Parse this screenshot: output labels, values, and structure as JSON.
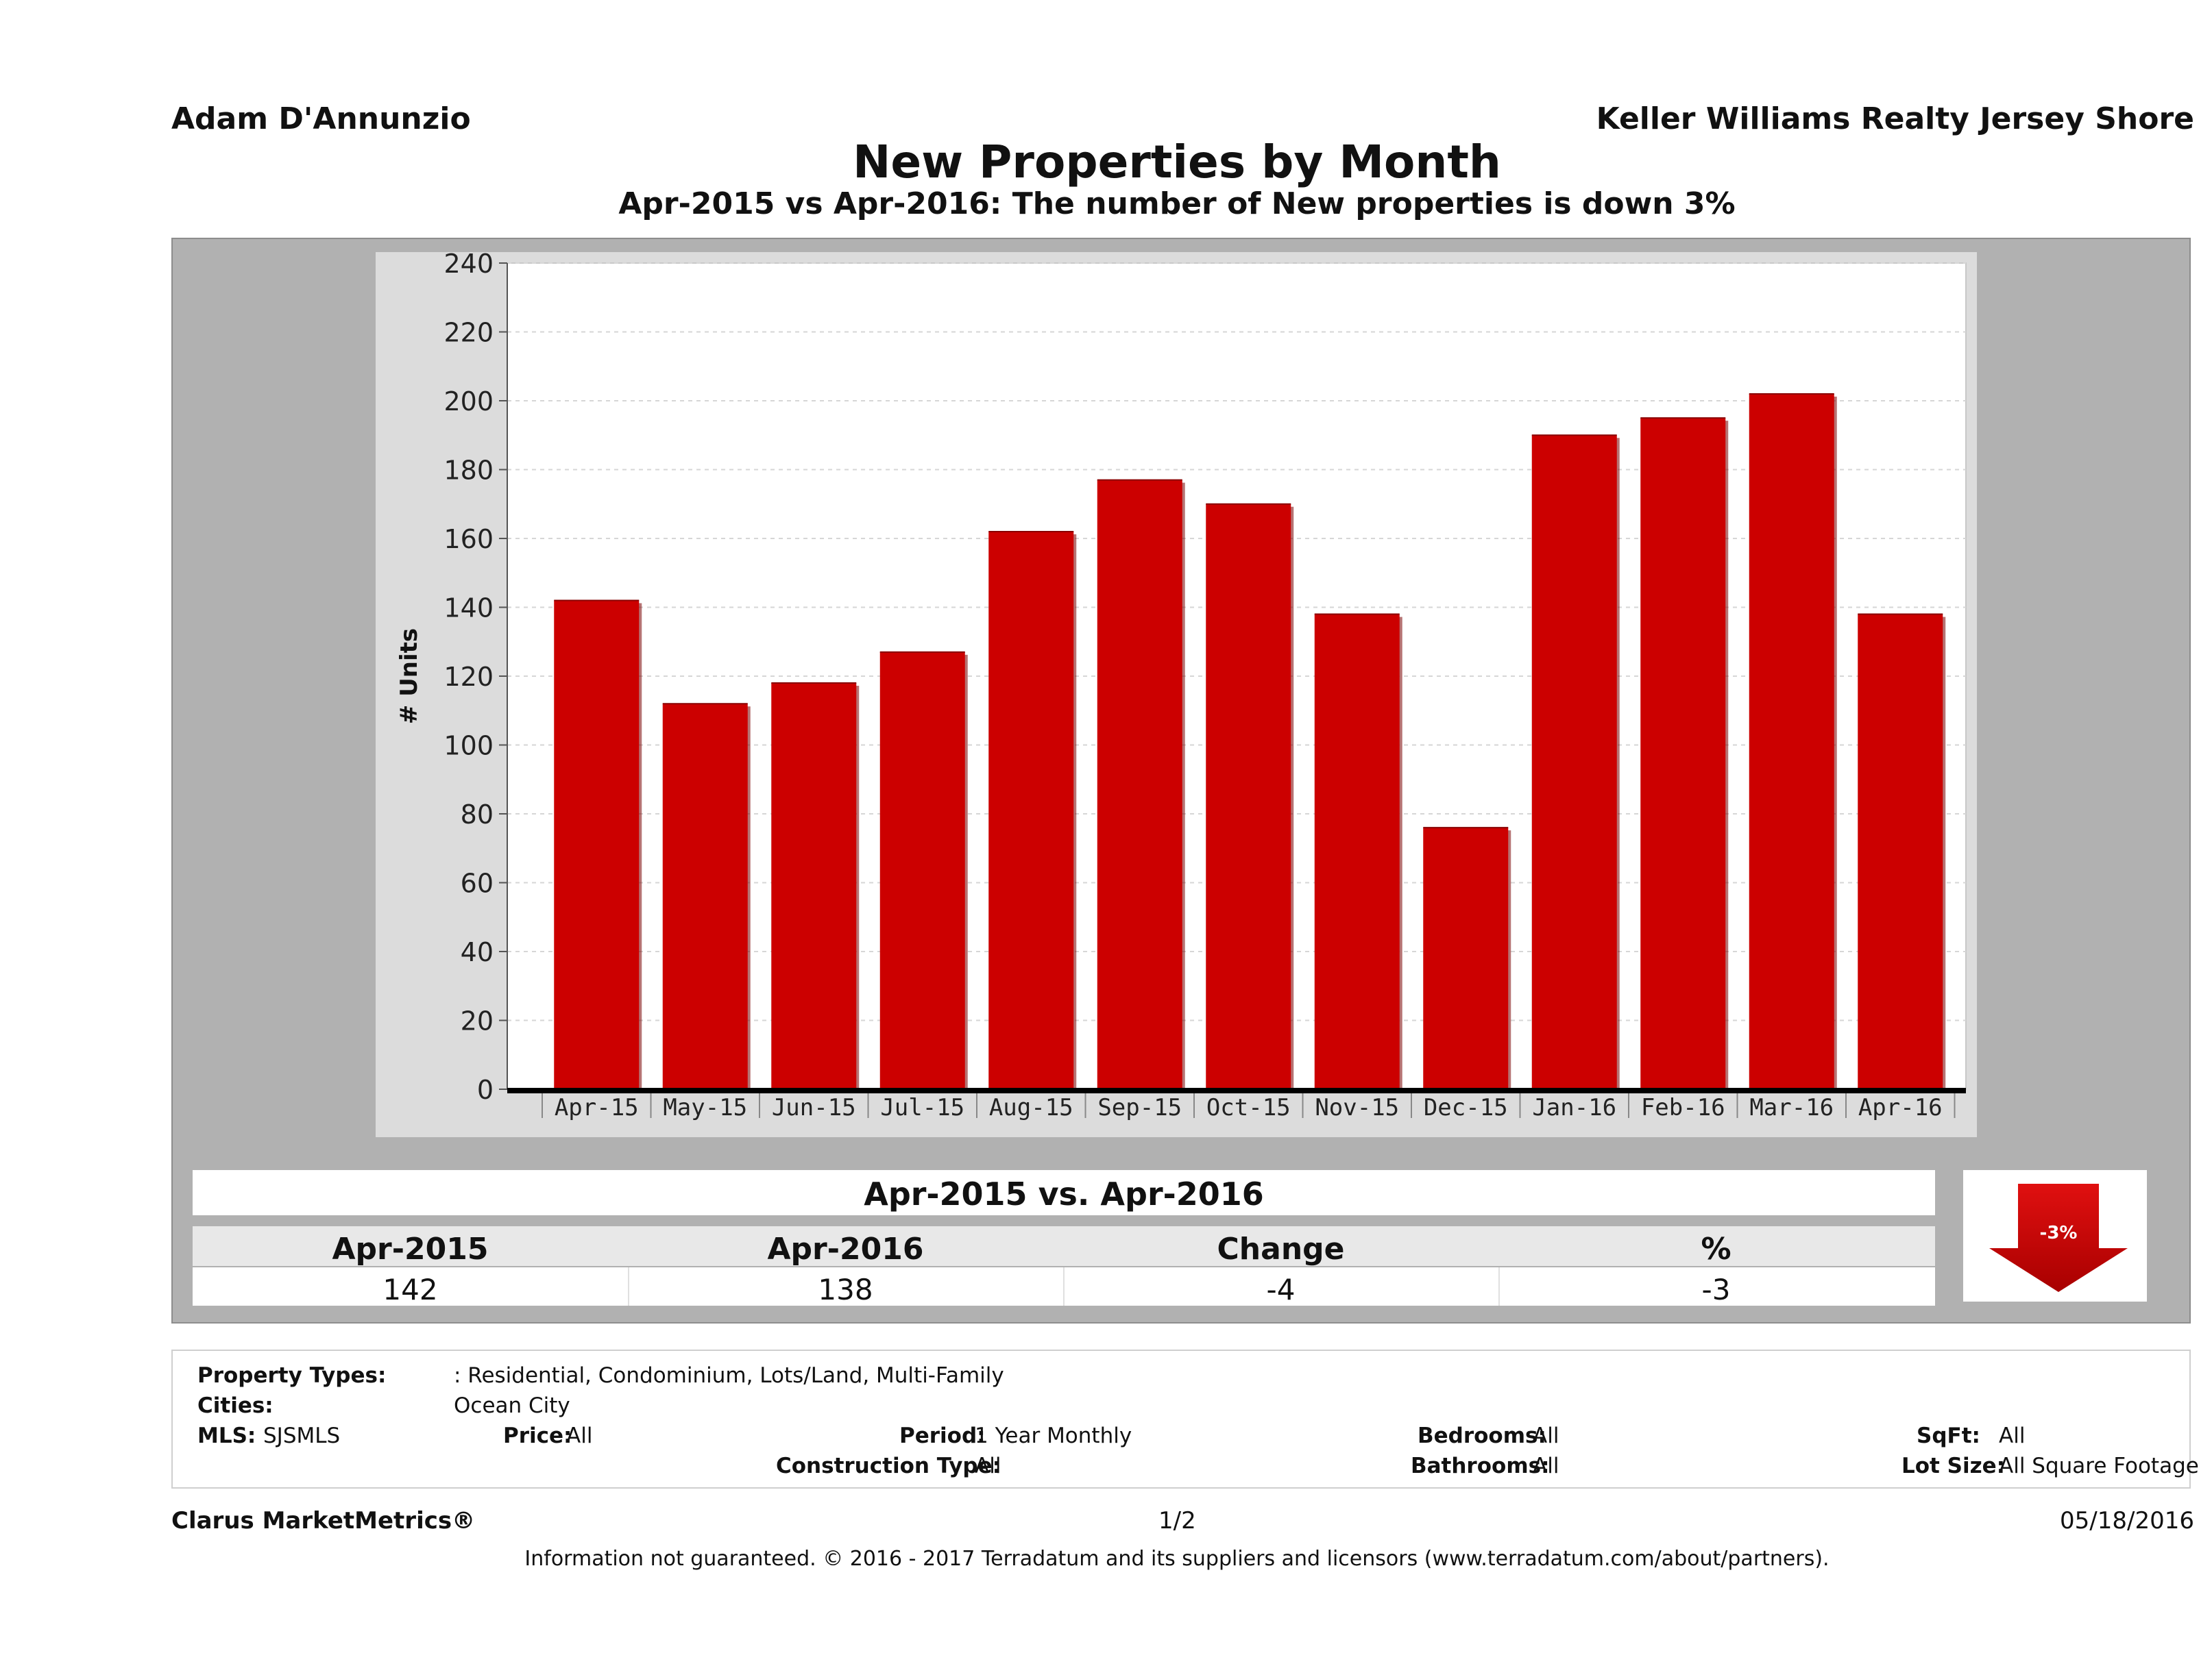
{
  "header": {
    "agent": "Adam D'Annunzio",
    "brokerage": "Keller Williams Realty Jersey Shore",
    "title": "New Properties by Month",
    "subtitle": "Apr-2015 vs Apr-2016: The number of New  properties is down 3%"
  },
  "chart_data": {
    "type": "bar",
    "title": "New Properties by Month",
    "xlabel": "",
    "ylabel": "# Units",
    "ylim": [
      0,
      240
    ],
    "yticks": [
      0,
      20,
      40,
      60,
      80,
      100,
      120,
      140,
      160,
      180,
      200,
      220,
      240
    ],
    "grid": true,
    "categories": [
      "Apr-15",
      "May-15",
      "Jun-15",
      "Jul-15",
      "Aug-15",
      "Sep-15",
      "Oct-15",
      "Nov-15",
      "Dec-15",
      "Jan-16",
      "Feb-16",
      "Mar-16",
      "Apr-16"
    ],
    "values": [
      142,
      112,
      118,
      127,
      162,
      177,
      170,
      138,
      76,
      190,
      195,
      202,
      138
    ],
    "bar_color": "#cc0000"
  },
  "summary": {
    "heading": "Apr-2015 vs. Apr-2016",
    "columns": [
      "Apr-2015",
      "Apr-2016",
      "Change",
      "%"
    ],
    "values": [
      "142",
      "138",
      "-4",
      "-3"
    ],
    "indicator": "-3%",
    "indicator_color": "#cc0000"
  },
  "criteria": {
    "property_types_label": "Property Types:",
    "property_types_value": ": Residential, Condominium, Lots/Land, Multi-Family",
    "cities_label": "Cities:",
    "cities_value": "Ocean City",
    "mls_label": "MLS:",
    "mls_value": "SJSMLS",
    "price_label": "Price:",
    "price_value": "All",
    "period_label": "Period:",
    "period_value": "1 Year Monthly",
    "bedrooms_label": "Bedrooms:",
    "bedrooms_value": "All",
    "sqft_label": "SqFt:",
    "sqft_value": "All",
    "construction_label": "Construction Type:",
    "construction_value": "All",
    "bathrooms_label": "Bathrooms:",
    "bathrooms_value": "All",
    "lotsize_label": "Lot Size:",
    "lotsize_value": "All Square Footage"
  },
  "footer": {
    "product": "Clarus MarketMetrics®",
    "page": "1/2",
    "date": "05/18/2016",
    "disclaimer": "Information not guaranteed. © 2016 - 2017 Terradatum and its suppliers and licensors (www.terradatum.com/about/partners)."
  }
}
